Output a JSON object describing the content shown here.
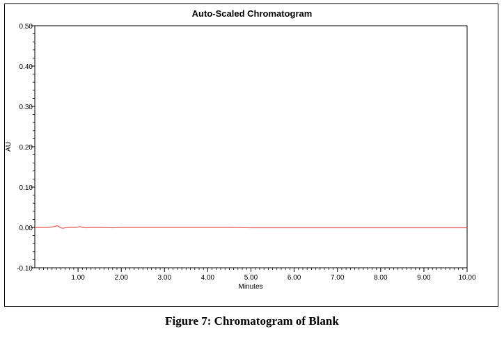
{
  "chart_data": {
    "type": "line",
    "title": "Auto-Scaled Chromatogram",
    "xlabel": "Minutes",
    "ylabel": "AU",
    "xlim": [
      0,
      10
    ],
    "ylim": [
      -0.1,
      0.5
    ],
    "x_ticks": [
      1,
      2,
      3,
      4,
      5,
      6,
      7,
      8,
      9,
      10
    ],
    "x_tick_labels": [
      "1.00",
      "2.00",
      "3.00",
      "4.00",
      "5.00",
      "6.00",
      "7.00",
      "8.00",
      "9.00",
      "10.00"
    ],
    "y_ticks": [
      -0.1,
      0.0,
      0.1,
      0.2,
      0.3,
      0.4,
      0.5
    ],
    "y_tick_labels": [
      "-0.10",
      "0.00",
      "0.10",
      "0.20",
      "0.30",
      "0.40",
      "0.50"
    ],
    "x_minor_step": 0.1,
    "y_minor_step": 0.02,
    "grid": false,
    "series": [
      {
        "color": "#e8534a",
        "x": [
          0.0,
          0.3,
          0.45,
          0.5,
          0.55,
          0.6,
          0.65,
          0.7,
          0.8,
          0.9,
          1.0,
          1.05,
          1.1,
          1.2,
          1.3,
          1.5,
          1.8,
          2.0,
          3.0,
          4.0,
          4.5,
          5.0,
          6.0,
          7.0,
          8.0,
          9.0,
          10.0
        ],
        "y": [
          0.0,
          0.0,
          0.002,
          0.004,
          0.003,
          -0.001,
          -0.002,
          -0.001,
          0.0,
          0.0,
          0.001,
          0.002,
          0.0,
          -0.001,
          0.0,
          0.0,
          -0.001,
          0.0,
          0.0,
          0.0,
          0.0,
          -0.001,
          -0.001,
          -0.001,
          -0.001,
          -0.001,
          -0.001
        ]
      }
    ]
  },
  "figure_caption": "Figure 7: Chromatogram of Blank"
}
